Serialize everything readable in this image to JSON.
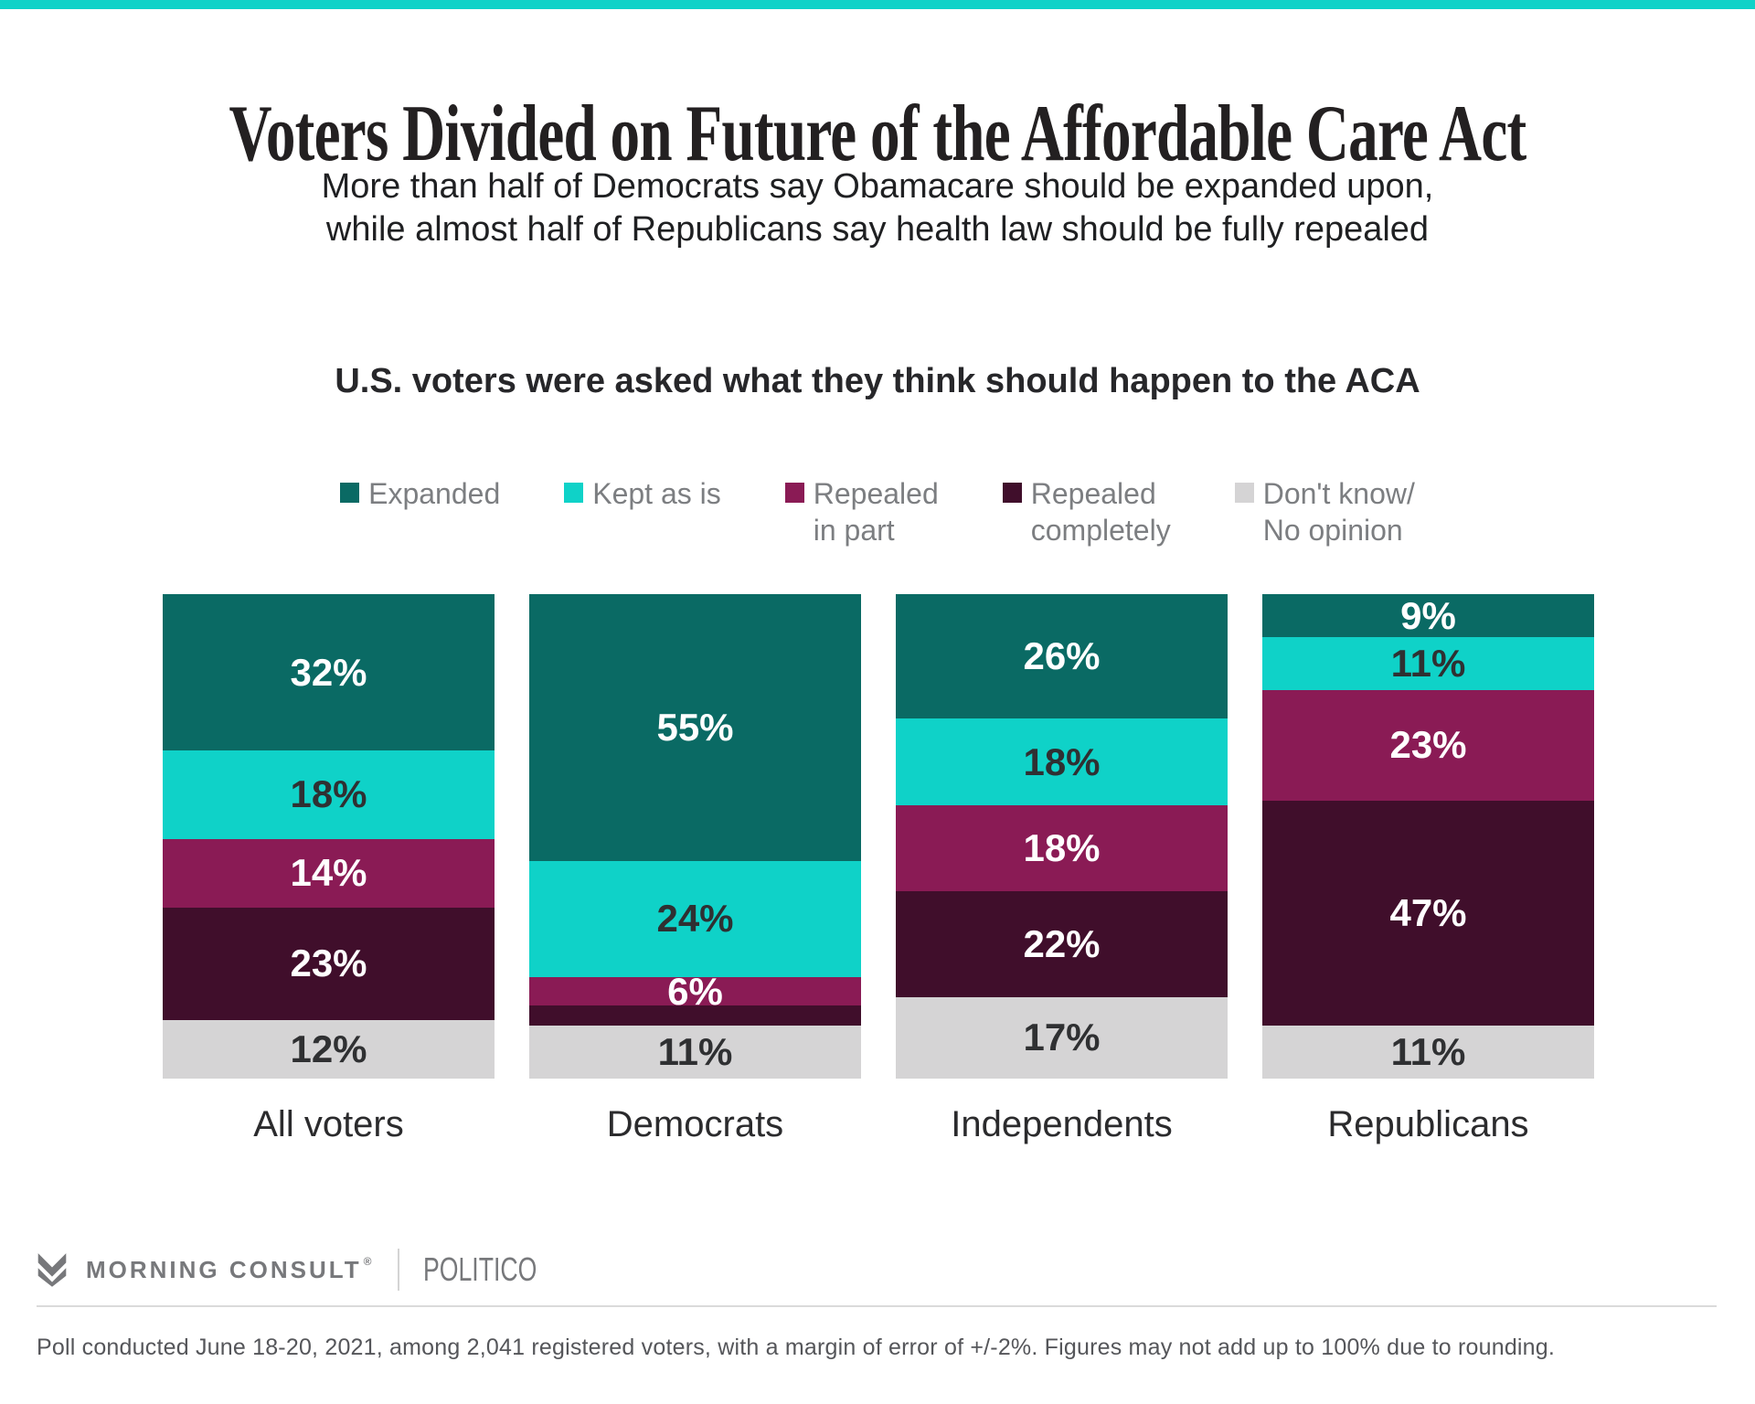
{
  "page": {
    "accent_color": "#0fd2c8"
  },
  "header": {
    "title": "Voters Divided on Future of the Affordable Care Act",
    "subtitle_lines": [
      "More than half of Democrats say Obamacare should be expanded upon,",
      "while almost half of Republicans say health law should be fully repealed"
    ]
  },
  "chart_data": {
    "type": "bar",
    "variant": "100-percent-stacked-column",
    "title": "U.S. voters were asked what they think should happen to the ACA",
    "legend_position": "top",
    "axes": "none",
    "categories": [
      "All voters",
      "Democrats",
      "Independents",
      "Republicans"
    ],
    "series": [
      {
        "name": "Expanded",
        "legend_lines": [
          "Expanded"
        ],
        "color": "#0a6a64",
        "label_color": "#ffffff",
        "values": [
          32,
          55,
          26,
          9
        ],
        "data_labels": [
          "32%",
          "55%",
          "26%",
          "9%"
        ]
      },
      {
        "name": "Kept as is",
        "legend_lines": [
          "Kept as is"
        ],
        "color": "#0fd2c8",
        "label_color": "#2f3032",
        "values": [
          18,
          24,
          18,
          11
        ],
        "data_labels": [
          "18%",
          "24%",
          "18%",
          "11%"
        ]
      },
      {
        "name": "Repealed in part",
        "legend_lines": [
          "Repealed",
          "in part"
        ],
        "color": "#8a1b55",
        "label_color": "#ffffff",
        "values": [
          14,
          6,
          18,
          23
        ],
        "data_labels": [
          "14%",
          "6%",
          "18%",
          "23%"
        ]
      },
      {
        "name": "Repealed completely",
        "legend_lines": [
          "Repealed",
          "completely"
        ],
        "color": "#400e2b",
        "label_color": "#ffffff",
        "values": [
          23,
          4,
          22,
          47
        ],
        "data_labels": [
          "23%",
          "",
          "22%",
          "47%"
        ]
      },
      {
        "name": "Don't know/No opinion",
        "legend_lines": [
          "Don't know/",
          "No opinion"
        ],
        "color": "#d5d4d5",
        "label_color": "#2f3032",
        "values": [
          12,
          11,
          17,
          11
        ],
        "data_labels": [
          "12%",
          "11%",
          "17%",
          "11%"
        ]
      }
    ]
  },
  "footer": {
    "brand_primary": "MORNING CONSULT",
    "brand_registered": "®",
    "brand_secondary": "POLITICO",
    "note": "Poll conducted June 18-20, 2021, among 2,041 registered voters, with a margin of error of +/-2%. Figures may not add up to 100% due to rounding."
  }
}
